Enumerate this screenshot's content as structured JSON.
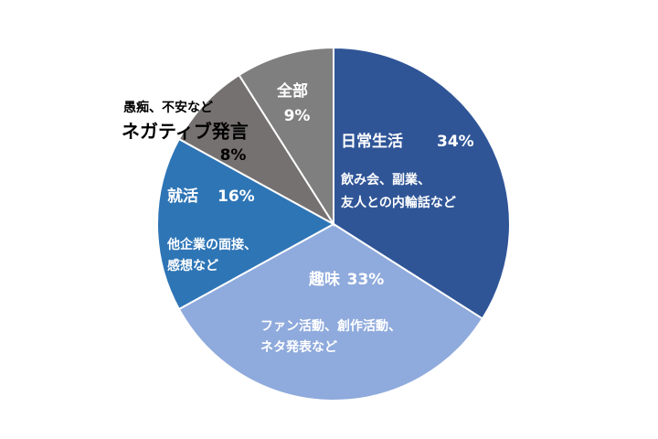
{
  "chart_data": {
    "type": "pie",
    "categories": [
      "日常生活",
      "趣味",
      "就活",
      "ネガティブ発言",
      "全部"
    ],
    "values": [
      34,
      33,
      16,
      8,
      9
    ],
    "value_labels": [
      "34%",
      "33%",
      "16%",
      "8%",
      "9%"
    ],
    "descriptions": [
      [
        "飲み会、副業、",
        "友人との内輪話など"
      ],
      [
        "ファン活動、創作活動、",
        "ネタ発表など"
      ],
      [
        "他企業の面接、",
        "感想など"
      ],
      [
        "愚痴、不安など"
      ],
      []
    ],
    "colors": [
      "#2f5597",
      "#8faadc",
      "#2e75b6",
      "#767171",
      "#7f7f7f"
    ]
  }
}
